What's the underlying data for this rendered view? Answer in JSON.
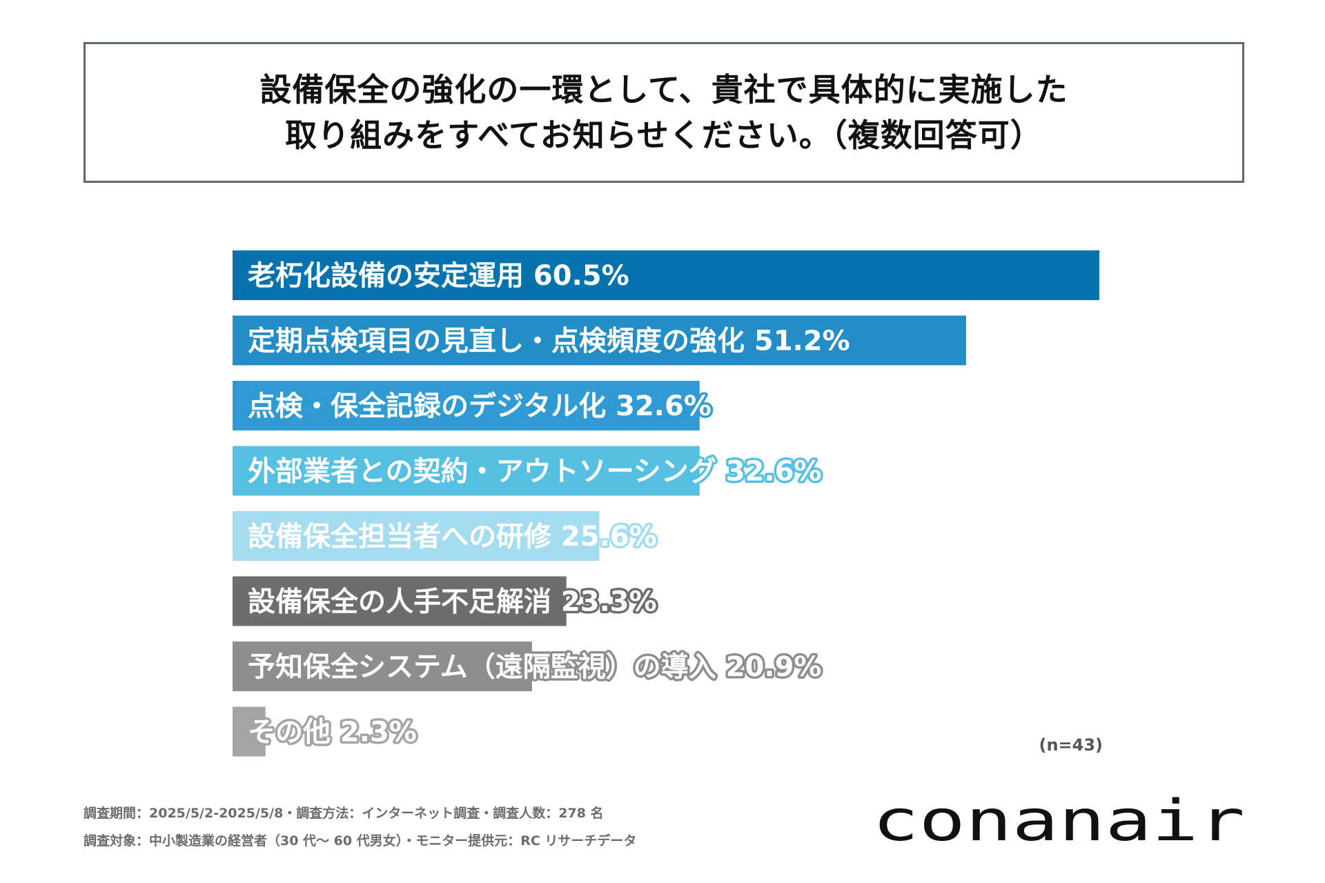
{
  "title": {
    "line1": "設備保全の強化の一環として、貴社で具体的に実施した",
    "line2": "取り組みをすべてお知らせください。（複数回答可）"
  },
  "chart_data": {
    "type": "bar",
    "orientation": "horizontal",
    "categories": [
      "老朽化設備の安定運用",
      "定期点検項目の見直し・点検頻度の強化",
      "点検・保全記録のデジタル化",
      "外部業者との契約・アウトソーシング",
      "設備保全担当者への研修",
      "設備保全の人手不足解消",
      "予知保全システム（遠隔監視）の導入",
      "その他"
    ],
    "values": [
      60.5,
      51.2,
      32.6,
      32.6,
      25.6,
      23.3,
      20.9,
      2.3
    ],
    "value_labels": [
      "60.5%",
      "51.2%",
      "32.6%",
      "32.6%",
      "25.6%",
      "23.3%",
      "20.9%",
      "2.3%"
    ],
    "colors": [
      "#0672ae",
      "#238dc6",
      "#2f9bd2",
      "#56c0e2",
      "#a6dcf0",
      "#6d6d6d",
      "#8e8e8e",
      "#a5a5a5"
    ],
    "xlim": [
      0,
      60.5
    ],
    "grid": false,
    "legend": "none"
  },
  "n_label": "(n=43)",
  "footer": {
    "line1": "調査期間：2025/5/2-2025/5/8・調査方法：インターネット調査・調査人数：278 名",
    "line2": "調査対象：中小製造業の経営者（30 代～ 60 代男女）・モニター提供元：RC リサーチデータ"
  },
  "logo": {
    "text": "conanair"
  }
}
